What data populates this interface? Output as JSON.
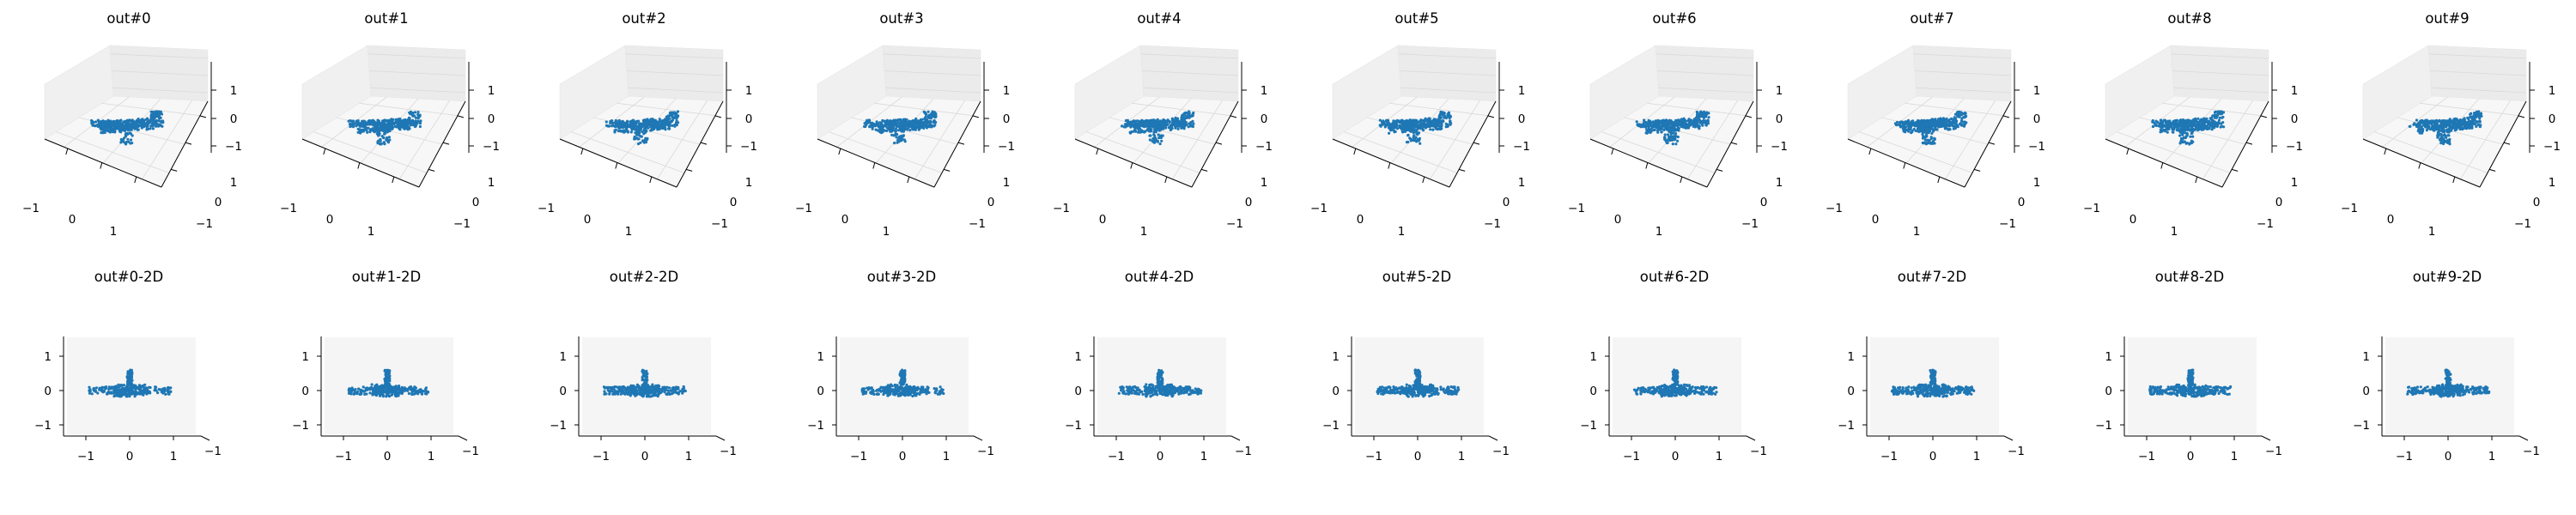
{
  "figure": {
    "n_panels_per_row": 10
  },
  "chart_data": [
    {
      "type": "scatter",
      "title": "out#0",
      "dims": 3,
      "xlim": [
        -1.5,
        1.5
      ],
      "ylim": [
        -1.5,
        1.5
      ],
      "zlim": [
        -1.5,
        1.5
      ],
      "xticks": [
        "−1",
        "0",
        "1"
      ],
      "yticks": [
        "−1",
        "0",
        "1"
      ],
      "zticks": [
        "−1",
        "0",
        "1"
      ],
      "series": [
        {
          "name": "points",
          "color": "#1f77b4",
          "values": []
        }
      ]
    },
    {
      "type": "scatter",
      "title": "out#1",
      "dims": 3,
      "xlim": [
        -1.5,
        1.5
      ],
      "ylim": [
        -1.5,
        1.5
      ],
      "zlim": [
        -1.5,
        1.5
      ],
      "xticks": [
        "−1",
        "0",
        "1"
      ],
      "yticks": [
        "−1",
        "0",
        "1"
      ],
      "zticks": [
        "−1",
        "0",
        "1"
      ],
      "series": [
        {
          "name": "points",
          "color": "#1f77b4",
          "values": []
        }
      ]
    },
    {
      "type": "scatter",
      "title": "out#2",
      "dims": 3,
      "xlim": [
        -1.5,
        1.5
      ],
      "ylim": [
        -1.5,
        1.5
      ],
      "zlim": [
        -1.5,
        1.5
      ],
      "xticks": [
        "−1",
        "0",
        "1"
      ],
      "yticks": [
        "−1",
        "0",
        "1"
      ],
      "zticks": [
        "−1",
        "0",
        "1"
      ],
      "series": [
        {
          "name": "points",
          "color": "#1f77b4",
          "values": []
        }
      ]
    },
    {
      "type": "scatter",
      "title": "out#3",
      "dims": 3,
      "xlim": [
        -1.5,
        1.5
      ],
      "ylim": [
        -1.5,
        1.5
      ],
      "zlim": [
        -1.5,
        1.5
      ],
      "xticks": [
        "−1",
        "0",
        "1"
      ],
      "yticks": [
        "−1",
        "0",
        "1"
      ],
      "zticks": [
        "−1",
        "0",
        "1"
      ],
      "series": [
        {
          "name": "points",
          "color": "#1f77b4",
          "values": []
        }
      ]
    },
    {
      "type": "scatter",
      "title": "out#4",
      "dims": 3,
      "xlim": [
        -1.5,
        1.5
      ],
      "ylim": [
        -1.5,
        1.5
      ],
      "zlim": [
        -1.5,
        1.5
      ],
      "xticks": [
        "−1",
        "0",
        "1"
      ],
      "yticks": [
        "−1",
        "0",
        "1"
      ],
      "zticks": [
        "−1",
        "0",
        "1"
      ],
      "series": [
        {
          "name": "points",
          "color": "#1f77b4",
          "values": []
        }
      ]
    },
    {
      "type": "scatter",
      "title": "out#5",
      "dims": 3,
      "xlim": [
        -1.5,
        1.5
      ],
      "ylim": [
        -1.5,
        1.5
      ],
      "zlim": [
        -1.5,
        1.5
      ],
      "xticks": [
        "−1",
        "0",
        "1"
      ],
      "yticks": [
        "−1",
        "0",
        "1"
      ],
      "zticks": [
        "−1",
        "0",
        "1"
      ],
      "series": [
        {
          "name": "points",
          "color": "#1f77b4",
          "values": []
        }
      ]
    },
    {
      "type": "scatter",
      "title": "out#6",
      "dims": 3,
      "xlim": [
        -1.5,
        1.5
      ],
      "ylim": [
        -1.5,
        1.5
      ],
      "zlim": [
        -1.5,
        1.5
      ],
      "xticks": [
        "−1",
        "0",
        "1"
      ],
      "yticks": [
        "−1",
        "0",
        "1"
      ],
      "zticks": [
        "−1",
        "0",
        "1"
      ],
      "series": [
        {
          "name": "points",
          "color": "#1f77b4",
          "values": []
        }
      ]
    },
    {
      "type": "scatter",
      "title": "out#7",
      "dims": 3,
      "xlim": [
        -1.5,
        1.5
      ],
      "ylim": [
        -1.5,
        1.5
      ],
      "zlim": [
        -1.5,
        1.5
      ],
      "xticks": [
        "−1",
        "0",
        "1"
      ],
      "yticks": [
        "−1",
        "0",
        "1"
      ],
      "zticks": [
        "−1",
        "0",
        "1"
      ],
      "series": [
        {
          "name": "points",
          "color": "#1f77b4",
          "values": []
        }
      ]
    },
    {
      "type": "scatter",
      "title": "out#8",
      "dims": 3,
      "xlim": [
        -1.5,
        1.5
      ],
      "ylim": [
        -1.5,
        1.5
      ],
      "zlim": [
        -1.5,
        1.5
      ],
      "xticks": [
        "−1",
        "0",
        "1"
      ],
      "yticks": [
        "−1",
        "0",
        "1"
      ],
      "zticks": [
        "−1",
        "0",
        "1"
      ],
      "series": [
        {
          "name": "points",
          "color": "#1f77b4",
          "values": []
        }
      ]
    },
    {
      "type": "scatter",
      "title": "out#9",
      "dims": 3,
      "xlim": [
        -1.5,
        1.5
      ],
      "ylim": [
        -1.5,
        1.5
      ],
      "zlim": [
        -1.5,
        1.5
      ],
      "xticks": [
        "−1",
        "0",
        "1"
      ],
      "yticks": [
        "−1",
        "0",
        "1"
      ],
      "zticks": [
        "−1",
        "0",
        "1"
      ],
      "series": [
        {
          "name": "points",
          "color": "#1f77b4",
          "values": []
        }
      ]
    },
    {
      "type": "scatter",
      "title": "out#0-2D",
      "dims": 2,
      "xlim": [
        -1.5,
        1.5
      ],
      "ylim": [
        -1.5,
        1.5
      ],
      "xticks": [
        "−1",
        "0",
        "1"
      ],
      "yticks": [
        "−1",
        "0",
        "1"
      ],
      "corner_tick_label": "−1",
      "series": [
        {
          "name": "points",
          "color": "#1f77b4",
          "values": []
        }
      ]
    },
    {
      "type": "scatter",
      "title": "out#1-2D",
      "dims": 2,
      "xlim": [
        -1.5,
        1.5
      ],
      "ylim": [
        -1.5,
        1.5
      ],
      "xticks": [
        "−1",
        "0",
        "1"
      ],
      "yticks": [
        "−1",
        "0",
        "1"
      ],
      "corner_tick_label": "−1",
      "series": [
        {
          "name": "points",
          "color": "#1f77b4",
          "values": []
        }
      ]
    },
    {
      "type": "scatter",
      "title": "out#2-2D",
      "dims": 2,
      "xlim": [
        -1.5,
        1.5
      ],
      "ylim": [
        -1.5,
        1.5
      ],
      "xticks": [
        "−1",
        "0",
        "1"
      ],
      "yticks": [
        "−1",
        "0",
        "1"
      ],
      "corner_tick_label": "−1",
      "series": [
        {
          "name": "points",
          "color": "#1f77b4",
          "values": []
        }
      ]
    },
    {
      "type": "scatter",
      "title": "out#3-2D",
      "dims": 2,
      "xlim": [
        -1.5,
        1.5
      ],
      "ylim": [
        -1.5,
        1.5
      ],
      "xticks": [
        "−1",
        "0",
        "1"
      ],
      "yticks": [
        "−1",
        "0",
        "1"
      ],
      "corner_tick_label": "−1",
      "series": [
        {
          "name": "points",
          "color": "#1f77b4",
          "values": []
        }
      ]
    },
    {
      "type": "scatter",
      "title": "out#4-2D",
      "dims": 2,
      "xlim": [
        -1.5,
        1.5
      ],
      "ylim": [
        -1.5,
        1.5
      ],
      "xticks": [
        "−1",
        "0",
        "1"
      ],
      "yticks": [
        "−1",
        "0",
        "1"
      ],
      "corner_tick_label": "−1",
      "series": [
        {
          "name": "points",
          "color": "#1f77b4",
          "values": []
        }
      ]
    },
    {
      "type": "scatter",
      "title": "out#5-2D",
      "dims": 2,
      "xlim": [
        -1.5,
        1.5
      ],
      "ylim": [
        -1.5,
        1.5
      ],
      "xticks": [
        "−1",
        "0",
        "1"
      ],
      "yticks": [
        "−1",
        "0",
        "1"
      ],
      "corner_tick_label": "−1",
      "series": [
        {
          "name": "points",
          "color": "#1f77b4",
          "values": []
        }
      ]
    },
    {
      "type": "scatter",
      "title": "out#6-2D",
      "dims": 2,
      "xlim": [
        -1.5,
        1.5
      ],
      "ylim": [
        -1.5,
        1.5
      ],
      "xticks": [
        "−1",
        "0",
        "1"
      ],
      "yticks": [
        "−1",
        "0",
        "1"
      ],
      "corner_tick_label": "−1",
      "series": [
        {
          "name": "points",
          "color": "#1f77b4",
          "values": []
        }
      ]
    },
    {
      "type": "scatter",
      "title": "out#7-2D",
      "dims": 2,
      "xlim": [
        -1.5,
        1.5
      ],
      "ylim": [
        -1.5,
        1.5
      ],
      "xticks": [
        "−1",
        "0",
        "1"
      ],
      "yticks": [
        "−1",
        "0",
        "1"
      ],
      "corner_tick_label": "−1",
      "series": [
        {
          "name": "points",
          "color": "#1f77b4",
          "values": []
        }
      ]
    },
    {
      "type": "scatter",
      "title": "out#8-2D",
      "dims": 2,
      "xlim": [
        -1.5,
        1.5
      ],
      "ylim": [
        -1.5,
        1.5
      ],
      "xticks": [
        "−1",
        "0",
        "1"
      ],
      "yticks": [
        "−1",
        "0",
        "1"
      ],
      "corner_tick_label": "−1",
      "series": [
        {
          "name": "points",
          "color": "#1f77b4",
          "values": []
        }
      ]
    },
    {
      "type": "scatter",
      "title": "out#9-2D",
      "dims": 2,
      "xlim": [
        -1.5,
        1.5
      ],
      "ylim": [
        -1.5,
        1.5
      ],
      "xticks": [
        "−1",
        "0",
        "1"
      ],
      "yticks": [
        "−1",
        "0",
        "1"
      ],
      "corner_tick_label": "−1",
      "series": [
        {
          "name": "points",
          "color": "#1f77b4",
          "values": []
        }
      ]
    }
  ]
}
